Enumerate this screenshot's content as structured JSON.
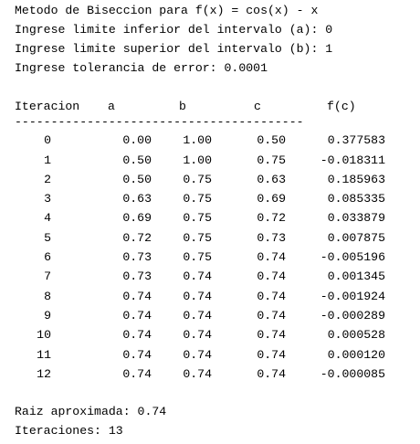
{
  "output": {
    "title_line": "Metodo de Biseccion para f(x) = cos(x) - x",
    "lower_prompt": "Ingrese limite inferior del intervalo (a): 0",
    "upper_prompt": "Ingrese limite superior del intervalo (b): 1",
    "tolerance_prompt": "Ingrese tolerancia de error: 0.0001",
    "table": {
      "headers": {
        "iter": "Iteracion",
        "a": "a",
        "b": "b",
        "c": "c",
        "fc": "f(c)"
      },
      "separator": "----------------------------------------",
      "rows": [
        {
          "iter": "0",
          "a": "0.00",
          "b": "1.00",
          "c": "0.50",
          "fc": "0.377583"
        },
        {
          "iter": "1",
          "a": "0.50",
          "b": "1.00",
          "c": "0.75",
          "fc": "-0.018311"
        },
        {
          "iter": "2",
          "a": "0.50",
          "b": "0.75",
          "c": "0.63",
          "fc": "0.185963"
        },
        {
          "iter": "3",
          "a": "0.63",
          "b": "0.75",
          "c": "0.69",
          "fc": "0.085335"
        },
        {
          "iter": "4",
          "a": "0.69",
          "b": "0.75",
          "c": "0.72",
          "fc": "0.033879"
        },
        {
          "iter": "5",
          "a": "0.72",
          "b": "0.75",
          "c": "0.73",
          "fc": "0.007875"
        },
        {
          "iter": "6",
          "a": "0.73",
          "b": "0.75",
          "c": "0.74",
          "fc": "-0.005196"
        },
        {
          "iter": "7",
          "a": "0.73",
          "b": "0.74",
          "c": "0.74",
          "fc": "0.001345"
        },
        {
          "iter": "8",
          "a": "0.74",
          "b": "0.74",
          "c": "0.74",
          "fc": "-0.001924"
        },
        {
          "iter": "9",
          "a": "0.74",
          "b": "0.74",
          "c": "0.74",
          "fc": "-0.000289"
        },
        {
          "iter": "10",
          "a": "0.74",
          "b": "0.74",
          "c": "0.74",
          "fc": "0.000528"
        },
        {
          "iter": "11",
          "a": "0.74",
          "b": "0.74",
          "c": "0.74",
          "fc": "0.000120"
        },
        {
          "iter": "12",
          "a": "0.74",
          "b": "0.74",
          "c": "0.74",
          "fc": "-0.000085"
        }
      ]
    },
    "root_line": "Raiz aproximada: 0.74",
    "iterations_line": "Iteraciones: 13"
  }
}
